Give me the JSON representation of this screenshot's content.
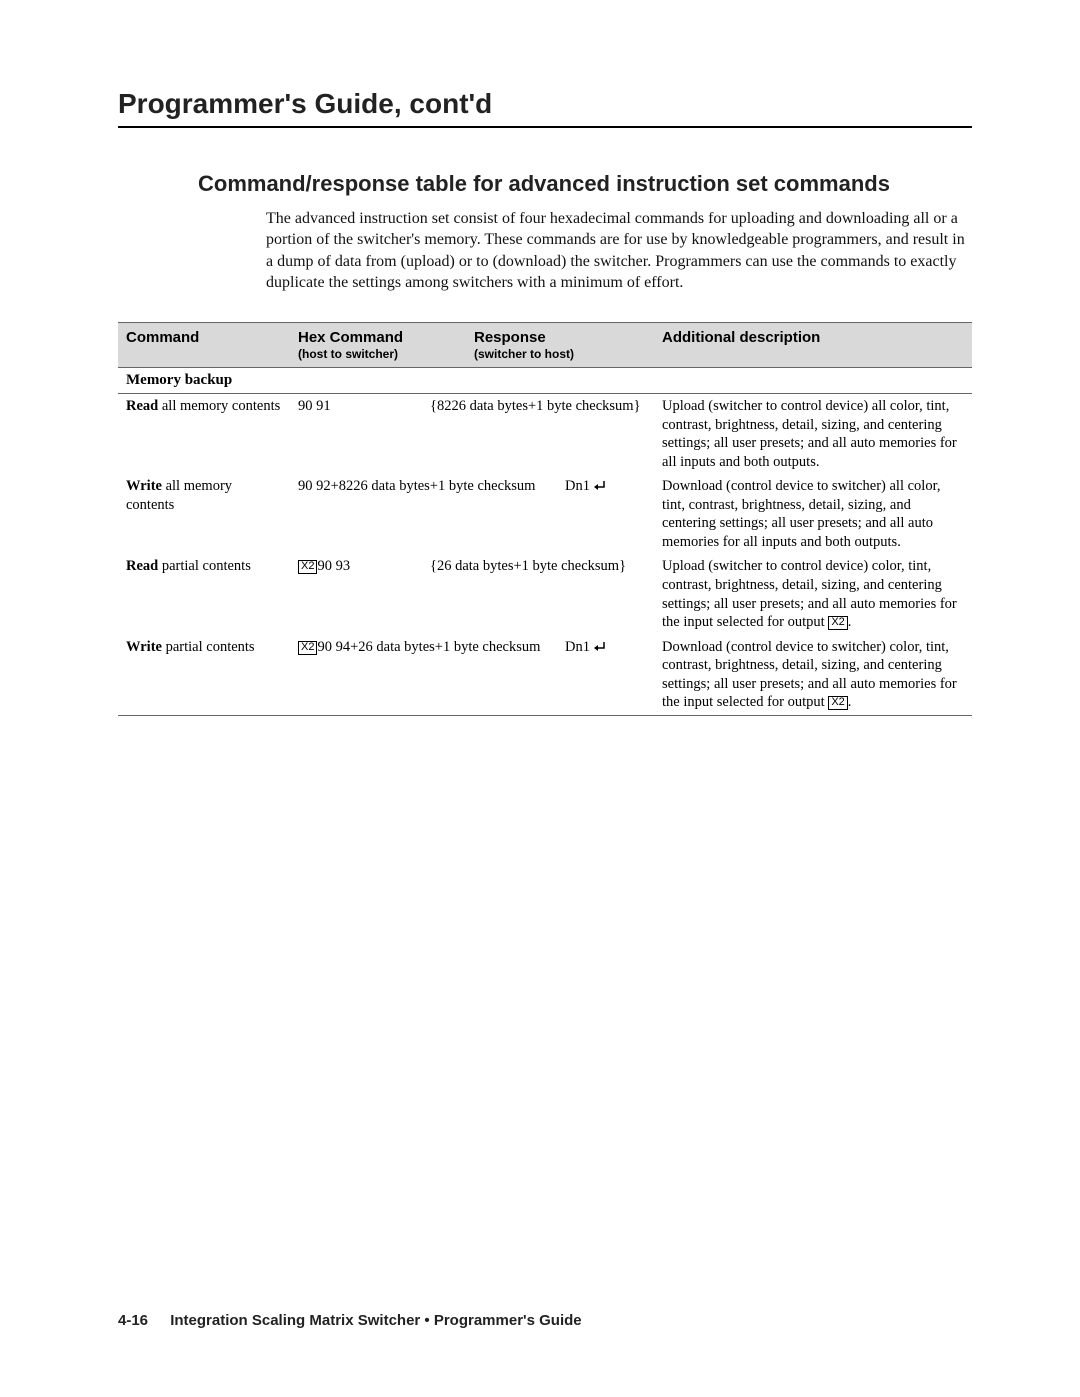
{
  "page": {
    "chapter_title": "Programmer's Guide, cont'd",
    "section_title": "Command/response table for advanced instruction set commands",
    "intro": "The advanced instruction set consist of four hexadecimal commands for uploading and downloading all or a portion of the switcher's memory.  These commands are for use by knowledgeable programmers, and result in a dump of data from (upload) or to (download) the switcher.  Programmers can use the commands to exactly duplicate the settings among switchers with a minimum of effort."
  },
  "table": {
    "headers": {
      "c1": "Command",
      "c2": "Hex Command",
      "c2_sub": "(host to switcher)",
      "c3": "Response",
      "c3_sub": "(switcher to host)",
      "c4": "Additional description"
    },
    "section_label": "Memory backup",
    "rows": [
      {
        "cmd_bold": "Read",
        "cmd_rest": " all memory contents",
        "hex_prefix_x2": false,
        "hex": "90 91",
        "response": "{8226 data bytes+1 byte checksum}",
        "response_dn1": false,
        "desc": "Upload (switcher to control device) all color, tint, contrast, brightness, detail, sizing, and centering settings; all user presets; and all auto memories for all inputs and both outputs.",
        "desc_tail_x2": false
      },
      {
        "cmd_bold": "Write",
        "cmd_rest": " all memory contents",
        "hex_prefix_x2": false,
        "hex_span23": "90 92+8226 data bytes+1 byte checksum",
        "response_dn1": true,
        "response_dn1_text": "Dn1",
        "desc": "Download (control device to switcher) all color, tint, contrast, brightness, detail, sizing, and centering settings; all user presets; and all auto memories for all inputs and both outputs.",
        "desc_tail_x2": false
      },
      {
        "cmd_bold": "Read",
        "cmd_rest": " partial contents",
        "hex_prefix_x2": true,
        "hex": "90 93",
        "response": "{26 data bytes+1 byte checksum}",
        "response_dn1": false,
        "desc": "Upload (switcher to control device) color, tint, contrast, brightness, detail, sizing, and centering settings; all user presets; and all auto memories for the input selected for output ",
        "desc_tail_x2": true
      },
      {
        "cmd_bold": "Write",
        "cmd_rest": " partial contents",
        "hex_prefix_x2": true,
        "hex_span23": "90 94+26 data bytes+1 byte checksum",
        "response_dn1": true,
        "response_dn1_text": "Dn1",
        "desc": "Download (control device to switcher) color, tint, contrast, brightness, detail, sizing, and centering settings; all user presets; and all auto memories for the input selected for output ",
        "desc_tail_x2": true
      }
    ]
  },
  "x2_label": "X2",
  "footer": {
    "page_number": "4-16",
    "text": "Integration Scaling Matrix Switcher • Programmer's Guide"
  },
  "colors": {
    "header_bg": "#d9d9d9",
    "rule": "#666666",
    "text": "#000000",
    "background": "#ffffff"
  },
  "fonts": {
    "heading_family": "Helvetica/Arial sans-serif",
    "body_family": "Palatino/Georgia serif",
    "chapter_title_pt": 28,
    "section_title_pt": 22,
    "body_pt": 16,
    "table_pt": 14.5
  }
}
